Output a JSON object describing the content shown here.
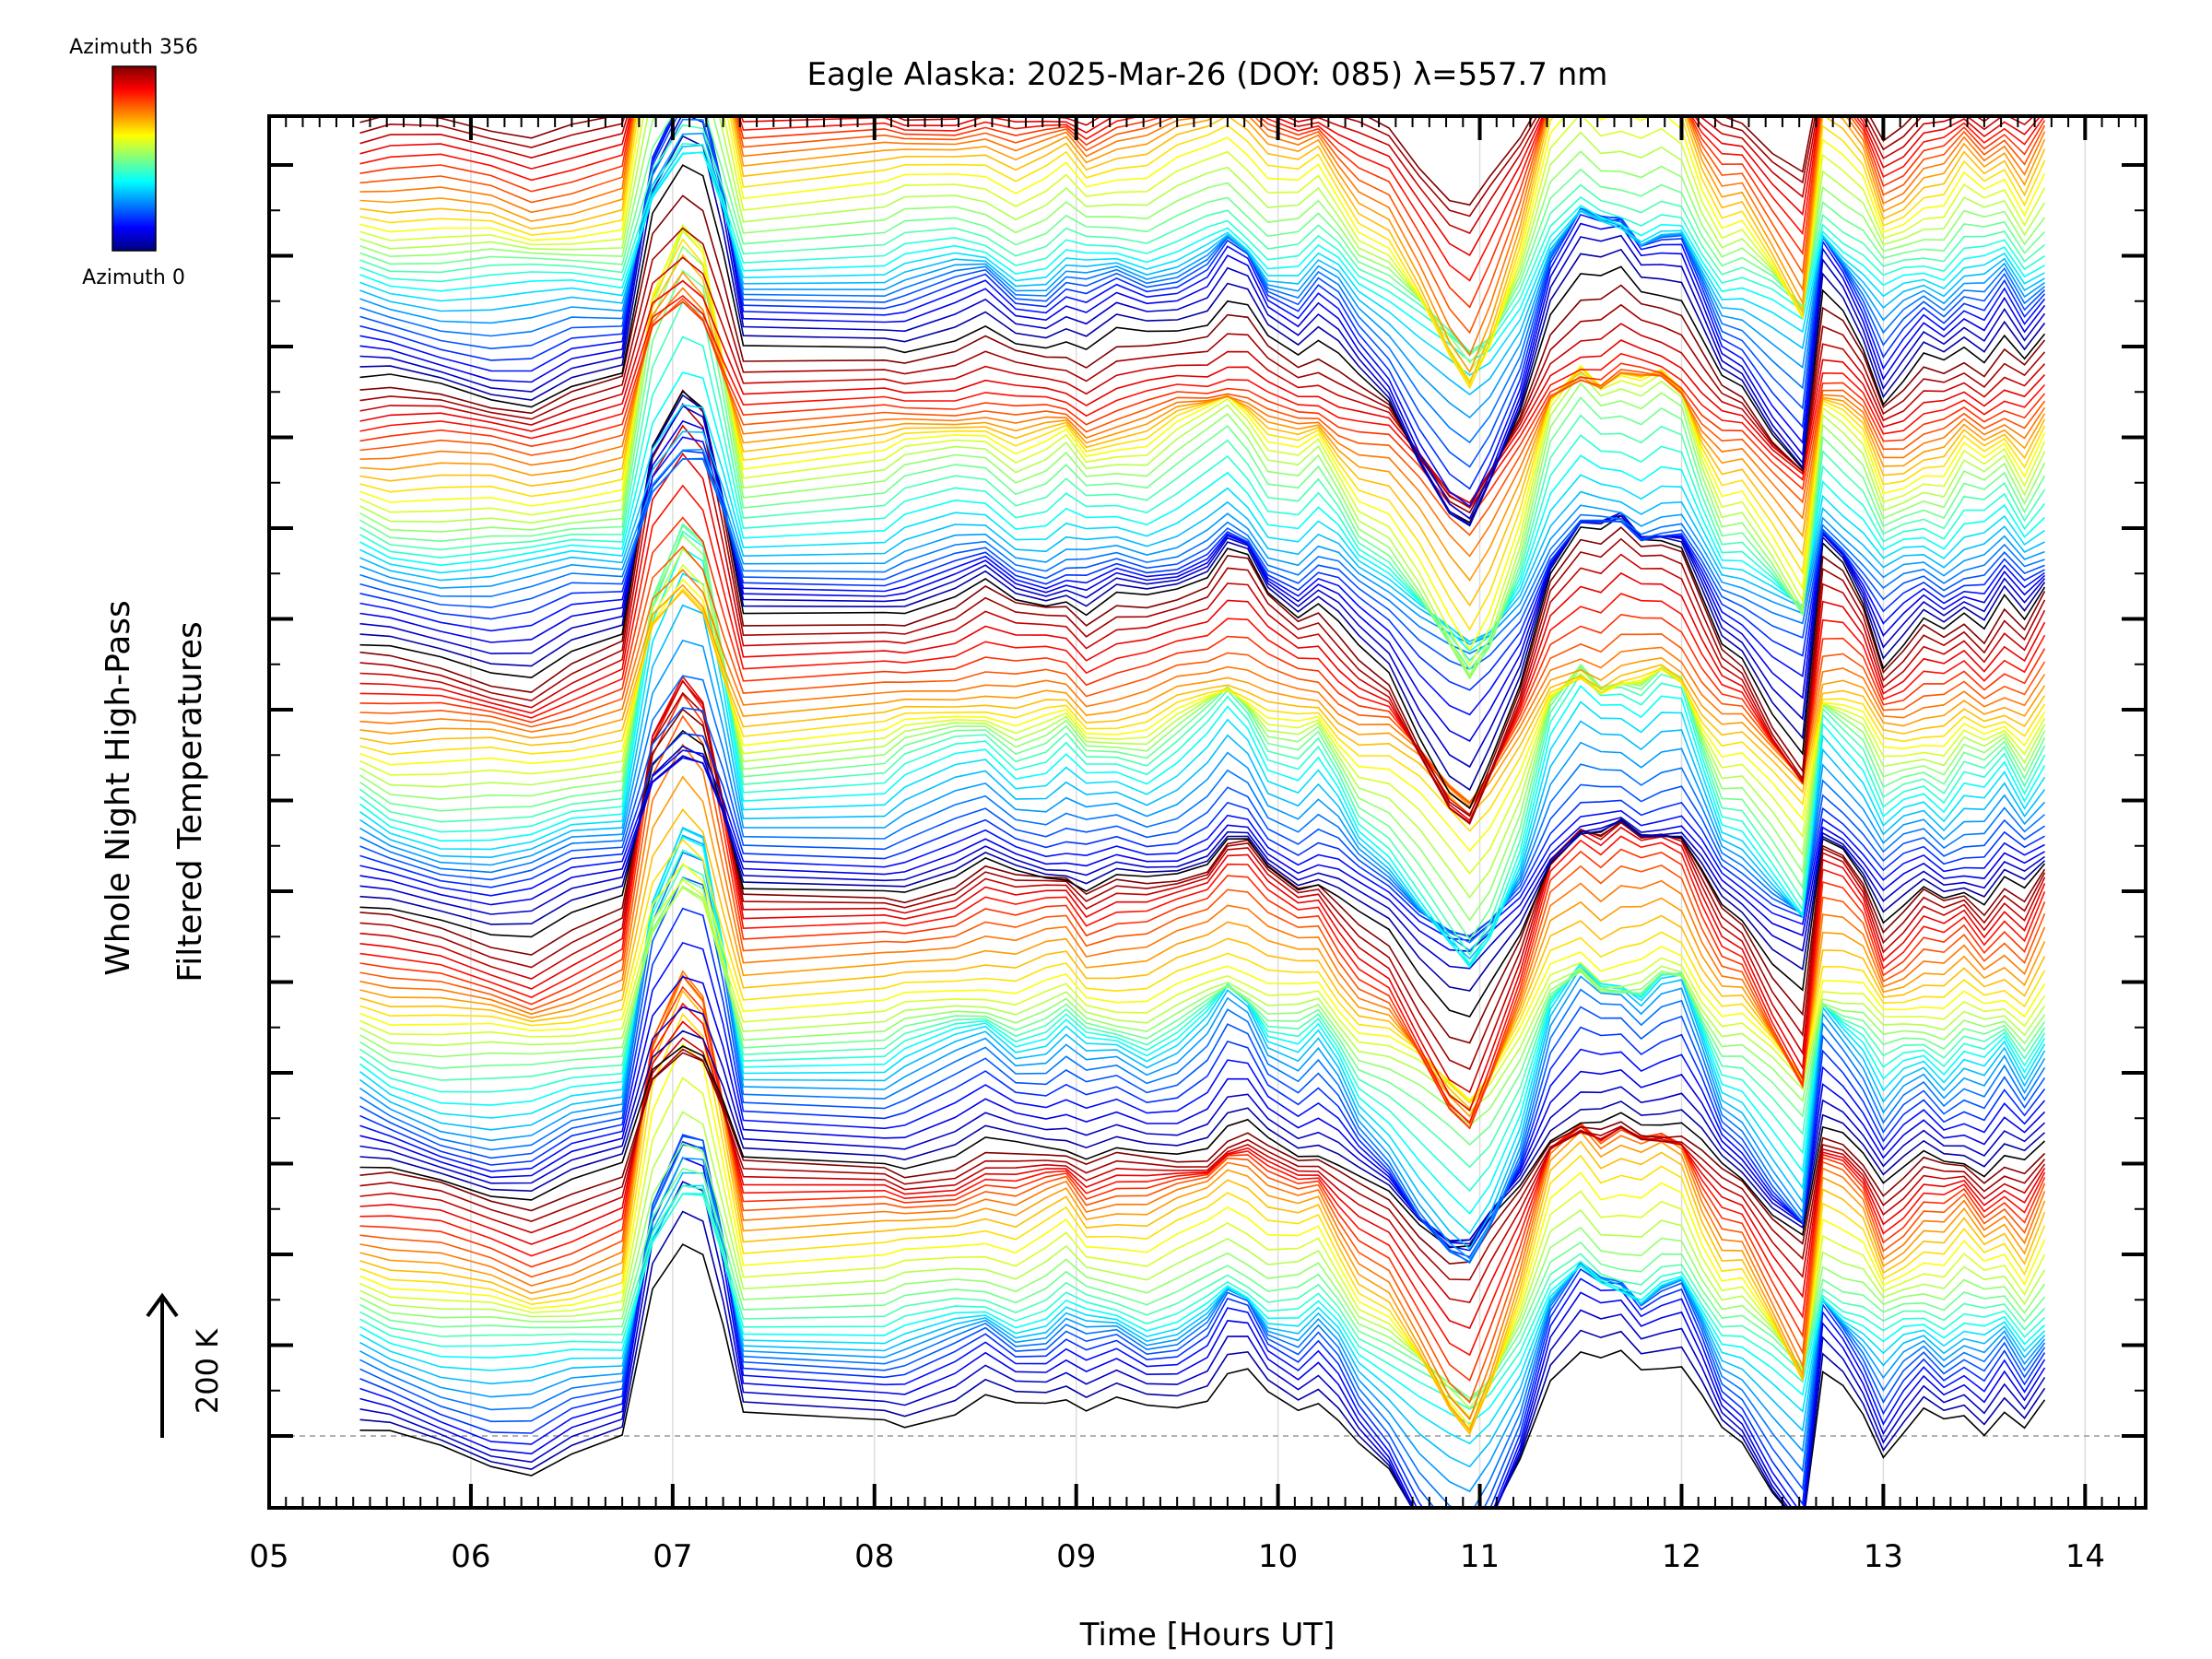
{
  "chart_data": {
    "type": "line",
    "title": "Eagle Alaska: 2025-Mar-26 (DOY: 085) λ=557.7 nm",
    "xlabel": "Time [Hours UT]",
    "ylabel_line1": "Whole Night High-Pass",
    "ylabel_line2": "Filtered Temperatures",
    "xlim": [
      5,
      14.3
    ],
    "x_ticks": [
      "05",
      "06",
      "07",
      "08",
      "09",
      "10",
      "11",
      "12",
      "13",
      "14"
    ],
    "scale_bar": "200 K",
    "colorbar": {
      "top_label": "Azimuth 356",
      "bottom_label": "Azimuth 0",
      "min": 0,
      "max": 356
    },
    "stacked_series_count": 150,
    "series_azimuth_range": [
      0,
      356
    ],
    "x": [
      5.45,
      5.6,
      5.85,
      6.1,
      6.3,
      6.5,
      6.75,
      6.9,
      7.05,
      7.15,
      7.25,
      7.35,
      8.05,
      8.15,
      8.4,
      8.55,
      8.7,
      8.85,
      8.95,
      9.05,
      9.2,
      9.35,
      9.5,
      9.65,
      9.75,
      9.85,
      9.95,
      10.1,
      10.2,
      10.3,
      10.4,
      10.55,
      10.7,
      10.85,
      10.95,
      11.05,
      11.2,
      11.35,
      11.5,
      11.6,
      11.7,
      11.8,
      11.9,
      12.0,
      12.1,
      12.2,
      12.3,
      12.45,
      12.6,
      12.7,
      12.8,
      12.9,
      13.0,
      13.1,
      13.2,
      13.3,
      13.4,
      13.5,
      13.6,
      13.7,
      13.8
    ],
    "base_profile_K": [
      0,
      -6,
      -12,
      -18,
      -22,
      -12,
      -4,
      118,
      160,
      150,
      85,
      12,
      15,
      18,
      26,
      32,
      20,
      24,
      32,
      20,
      26,
      22,
      30,
      40,
      55,
      48,
      28,
      20,
      30,
      12,
      -10,
      -26,
      -60,
      -92,
      -105,
      -78,
      -26,
      48,
      74,
      64,
      68,
      58,
      64,
      60,
      26,
      -4,
      -8,
      -40,
      -70,
      52,
      40,
      22,
      -12,
      0,
      12,
      6,
      20,
      10,
      24,
      4,
      28
    ]
  }
}
